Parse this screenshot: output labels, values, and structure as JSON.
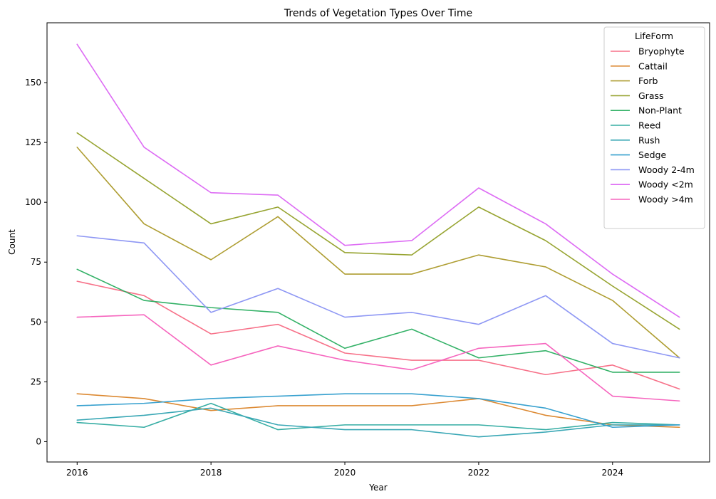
{
  "chart_data": {
    "type": "line",
    "title": "Trends of Vegetation Types Over Time",
    "xlabel": "Year",
    "ylabel": "Count",
    "x": [
      2016,
      2017,
      2018,
      2019,
      2020,
      2021,
      2022,
      2023,
      2024,
      2025
    ],
    "xlim": [
      2015.55,
      2025.45
    ],
    "ylim": [
      -8.5,
      175
    ],
    "xticks": [
      2016,
      2018,
      2020,
      2022,
      2024
    ],
    "yticks": [
      0,
      25,
      50,
      75,
      100,
      125,
      150
    ],
    "grid": false,
    "legend_title": "LifeForm",
    "legend_position": "top-right",
    "series": [
      {
        "name": "Bryophyte",
        "color": "#f77189",
        "values": [
          67,
          61,
          45,
          49,
          37,
          34,
          34,
          28,
          32,
          22
        ]
      },
      {
        "name": "Cattail",
        "color": "#dc8932",
        "values": [
          20,
          18,
          13,
          15,
          15,
          15,
          18,
          11,
          7,
          6
        ]
      },
      {
        "name": "Forb",
        "color": "#ae9d31",
        "values": [
          123,
          91,
          76,
          94,
          70,
          70,
          78,
          73,
          59,
          35
        ]
      },
      {
        "name": "Grass",
        "color": "#97a431",
        "values": [
          129,
          110,
          91,
          98,
          79,
          78,
          98,
          84,
          65,
          47
        ]
      },
      {
        "name": "Non-Plant",
        "color": "#32b166",
        "values": [
          72,
          59,
          56,
          54,
          39,
          47,
          35,
          38,
          29,
          29
        ]
      },
      {
        "name": "Reed",
        "color": "#36ada4",
        "values": [
          8,
          6,
          16,
          5,
          7,
          7,
          7,
          5,
          8,
          7
        ]
      },
      {
        "name": "Rush",
        "color": "#39a7b5",
        "values": [
          9,
          11,
          14,
          7,
          5,
          5,
          2,
          4,
          7,
          7
        ]
      },
      {
        "name": "Sedge",
        "color": "#38a1cf",
        "values": [
          15,
          16,
          18,
          19,
          20,
          20,
          18,
          14,
          6,
          7
        ]
      },
      {
        "name": "Woody 2-4m",
        "color": "#8e97f4",
        "values": [
          86,
          83,
          54,
          64,
          52,
          54,
          49,
          61,
          41,
          35
        ]
      },
      {
        "name": "Woody <2m",
        "color": "#dd6cf4",
        "values": [
          166,
          123,
          104,
          103,
          82,
          84,
          106,
          91,
          70,
          52
        ]
      },
      {
        "name": "Woody >4m",
        "color": "#f665be",
        "values": [
          52,
          53,
          32,
          40,
          34,
          30,
          39,
          41,
          19,
          17
        ]
      }
    ]
  }
}
